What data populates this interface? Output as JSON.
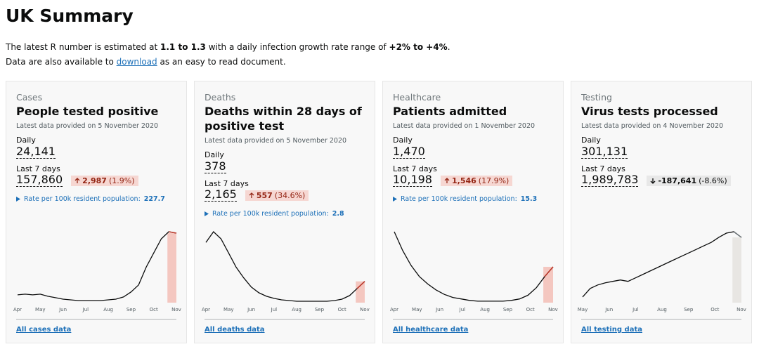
{
  "header": {
    "title": "UK Summary"
  },
  "intro": {
    "r_text": "The latest R number is estimated at",
    "r_value": "1.1 to 1.3",
    "growth_text": "with a daily infection growth rate range of",
    "growth_value": "+2% to +4%",
    "period": ".",
    "data_text": "Data are also available to",
    "link": "download",
    "data_tail": "as an easy to read document."
  },
  "cards": [
    {
      "category": "Cases",
      "title": "People tested positive",
      "provided": "Latest data provided on 5 November 2020",
      "daily_label": "Daily",
      "daily": "24,141",
      "week_label": "Last 7 days",
      "week": "157,860",
      "change": "2,987",
      "change_pct": "(1.9%)",
      "direction": "up",
      "rate_label": "Rate per 100k resident population:",
      "rate": "227.7",
      "months": [
        "Apr",
        "May",
        "Jun",
        "Jul",
        "Aug",
        "Sep",
        "Oct",
        "Nov"
      ],
      "trend": [
        11,
        12,
        11,
        12,
        9,
        7,
        5,
        4,
        3,
        3,
        3,
        3,
        4,
        5,
        8,
        15,
        25,
        50,
        70,
        90,
        100,
        98
      ],
      "color": "#f4c7c0",
      "line": "#c0392b",
      "link": "All cases data"
    },
    {
      "category": "Deaths",
      "title": "Deaths within 28 days of positive test",
      "provided": "Latest data provided on 5 November 2020",
      "daily_label": "Daily",
      "daily": "378",
      "week_label": "Last 7 days",
      "week": "2,165",
      "change": "557",
      "change_pct": "(34.6%)",
      "direction": "up",
      "rate_label": "Rate per 100k resident population:",
      "rate": "2.8",
      "months": [
        "Apr",
        "May",
        "Jun",
        "Jul",
        "Aug",
        "Sep",
        "Oct",
        "Nov"
      ],
      "trend": [
        85,
        100,
        90,
        70,
        50,
        35,
        22,
        14,
        9,
        6,
        4,
        3,
        2,
        2,
        2,
        2,
        2,
        3,
        5,
        10,
        20,
        30
      ],
      "color": "#f4c7c0",
      "line": "#c0392b",
      "link": "All deaths data"
    },
    {
      "category": "Healthcare",
      "title": "Patients admitted",
      "provided": "Latest data provided on 1 November 2020",
      "daily_label": "Daily",
      "daily": "1,470",
      "week_label": "Last 7 days",
      "week": "10,198",
      "change": "1,546",
      "change_pct": "(17.9%)",
      "direction": "up",
      "rate_label": "Rate per 100k resident population:",
      "rate": "15.3",
      "months": [
        "Apr",
        "May",
        "Jun",
        "Jul",
        "Aug",
        "Sep",
        "Oct",
        "Nov"
      ],
      "trend": [
        95,
        70,
        50,
        35,
        25,
        17,
        11,
        7,
        5,
        3,
        2,
        2,
        2,
        2,
        3,
        5,
        10,
        20,
        35,
        48
      ],
      "color": "#f4c7c0",
      "line": "#c0392b",
      "link": "All healthcare data"
    },
    {
      "category": "Testing",
      "title": "Virus tests processed",
      "provided": "Latest data provided on 4 November 2020",
      "daily_label": "Daily",
      "daily": "301,131",
      "week_label": "Last 7 days",
      "week": "1,989,783",
      "change": "-187,641",
      "change_pct": "(-8.6%)",
      "direction": "down",
      "months": [
        "May",
        "Jun",
        "Jul",
        "Aug",
        "Sep",
        "Oct",
        "Nov"
      ],
      "trend": [
        8,
        20,
        25,
        28,
        30,
        32,
        30,
        35,
        40,
        45,
        50,
        55,
        60,
        65,
        70,
        75,
        80,
        85,
        92,
        98,
        100,
        92
      ],
      "color": "#e8e6e3",
      "line": "#6f777b",
      "link": "All testing data"
    }
  ]
}
